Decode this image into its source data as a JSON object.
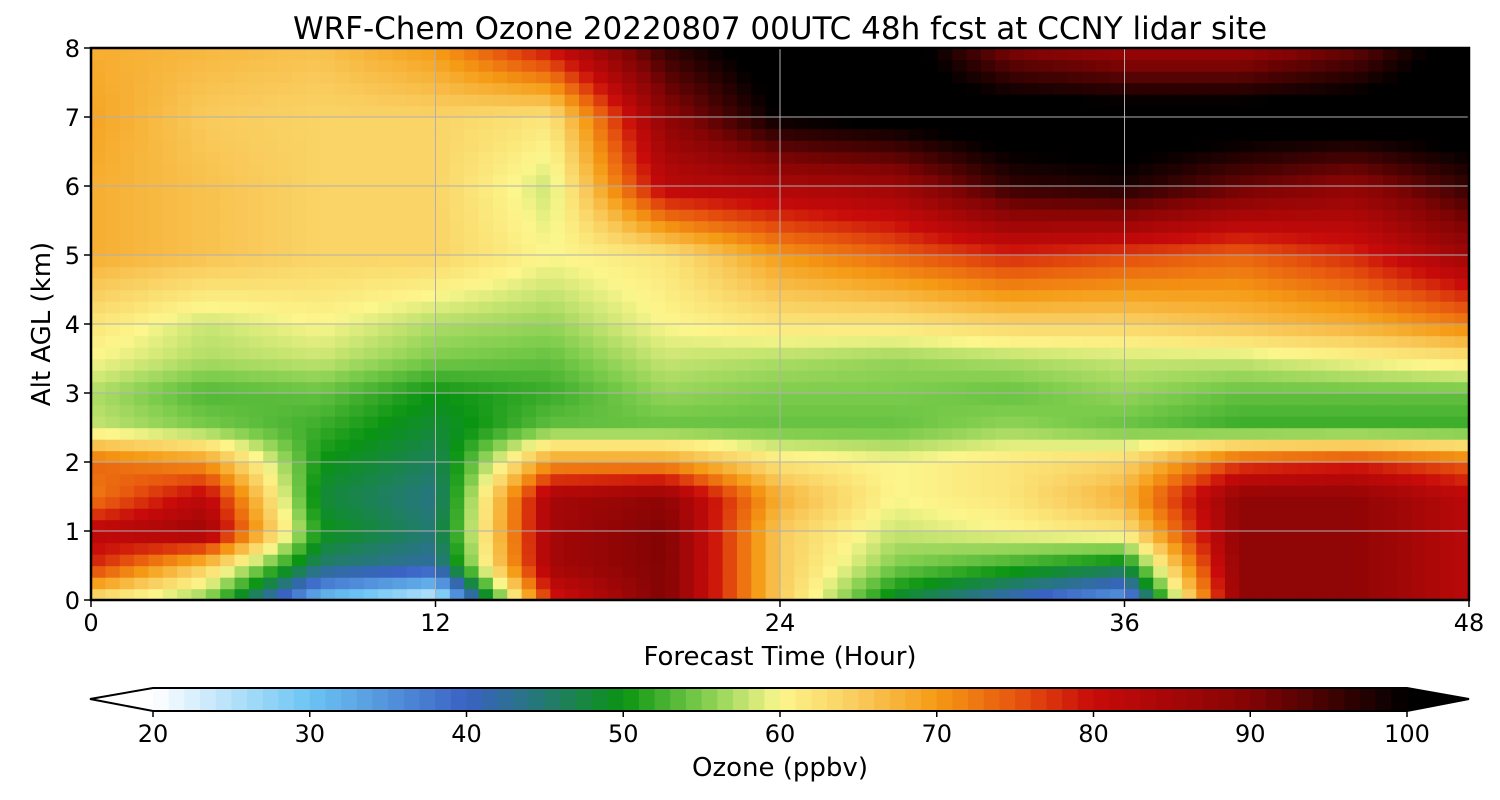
{
  "chart_data": {
    "type": "heatmap",
    "title": "WRF-Chem Ozone  20220807 00UTC 48h fcst at CCNY lidar site",
    "xlabel": "Forecast Time (Hour)",
    "ylabel": "Alt AGL (km)",
    "xlim": [
      0,
      48
    ],
    "ylim": [
      0,
      8
    ],
    "xticks": [
      "0",
      "12",
      "24",
      "36",
      "48"
    ],
    "yticks": [
      "0",
      "1",
      "2",
      "3",
      "4",
      "5",
      "6",
      "7",
      "8"
    ],
    "grid": true,
    "x": [
      0,
      4,
      8,
      12,
      16,
      20,
      24,
      28,
      32,
      36,
      40,
      44,
      48
    ],
    "y": [
      0,
      0.5,
      1,
      1.5,
      2,
      2.5,
      3,
      3.5,
      4,
      5,
      6,
      7,
      8
    ],
    "z": [
      [
        62,
        55,
        30,
        22,
        78,
        90,
        65,
        48,
        40,
        33,
        88,
        88,
        82
      ],
      [
        78,
        65,
        45,
        42,
        85,
        90,
        65,
        55,
        52,
        48,
        88,
        88,
        82
      ],
      [
        82,
        86,
        50,
        45,
        85,
        90,
        65,
        58,
        60,
        62,
        88,
        88,
        82
      ],
      [
        72,
        82,
        48,
        44,
        85,
        88,
        68,
        60,
        62,
        68,
        88,
        88,
        82
      ],
      [
        74,
        70,
        50,
        46,
        70,
        70,
        62,
        60,
        62,
        64,
        76,
        78,
        74
      ],
      [
        58,
        55,
        52,
        48,
        54,
        54,
        54,
        54,
        56,
        54,
        52,
        52,
        52
      ],
      [
        57,
        53,
        54,
        50,
        52,
        56,
        55,
        55,
        54,
        56,
        54,
        54,
        54
      ],
      [
        60,
        57,
        58,
        55,
        54,
        58,
        57,
        56,
        57,
        58,
        58,
        60,
        62
      ],
      [
        62,
        58,
        60,
        57,
        56,
        60,
        62,
        62,
        64,
        64,
        66,
        68,
        72
      ],
      [
        68,
        66,
        64,
        64,
        60,
        62,
        70,
        74,
        78,
        76,
        74,
        78,
        86
      ],
      [
        68,
        66,
        64,
        64,
        58,
        82,
        84,
        86,
        96,
        98,
        92,
        88,
        96
      ],
      [
        69,
        65,
        64,
        64,
        62,
        88,
        100,
        102,
        104,
        104,
        104,
        104,
        104
      ],
      [
        68,
        67,
        66,
        70,
        80,
        96,
        104,
        104,
        90,
        86,
        86,
        92,
        104
      ]
    ],
    "colorbar": {
      "label": "Ozone  (ppbv)",
      "min": 20,
      "max": 100,
      "ticks": [
        "20",
        "30",
        "40",
        "50",
        "60",
        "70",
        "80",
        "90",
        "100"
      ],
      "extend": "both"
    },
    "colormap": [
      [
        20,
        "#ffffff"
      ],
      [
        30,
        "#6cc4f4"
      ],
      [
        40,
        "#3a62c4"
      ],
      [
        45,
        "#237a72"
      ],
      [
        50,
        "#0a9412"
      ],
      [
        55,
        "#7ccc4c"
      ],
      [
        60,
        "#fcf68c"
      ],
      [
        65,
        "#f9cb5c"
      ],
      [
        70,
        "#f59a14"
      ],
      [
        75,
        "#e7560e"
      ],
      [
        80,
        "#c80a0a"
      ],
      [
        90,
        "#820404"
      ],
      [
        100,
        "#000000"
      ]
    ]
  }
}
